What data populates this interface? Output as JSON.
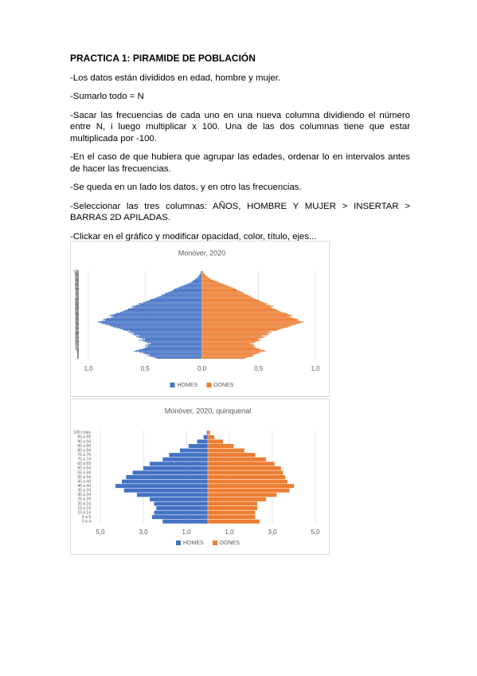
{
  "document": {
    "title": "PRACTICA 1: PIRAMIDE DE POBLACIÓN",
    "paragraphs": [
      "-Los datos están divididos en edad, hombre y mujer.",
      "-Sumarlo todo = N",
      "-Sacar las frecuencias de cada uno en una nueva columna dividiendo el número entre N, i luego multiplicar x 100. Una de las dos columnas tiene que estar multiplicada por -100.",
      "-En el caso de que hubiera que agrupar las edades, ordenar lo en intervalos antes de hacer las frecuencias.",
      "-Se queda en un lado los datos, y en otro las frecuencias.",
      "-Seleccionar las tres columnas: AÑOS, HOMBRE Y MUJER > INSERTAR > BARRAS 2D APILADAS.",
      "-Clickar en el gráfico y modificar opacidad, color, título, ejes..."
    ]
  },
  "chart_data": [
    {
      "type": "bar",
      "orientation": "horizontal",
      "title": "Monòver, 2020",
      "categories": [
        "0",
        "1",
        "2",
        "3",
        "4",
        "5",
        "6",
        "7",
        "8",
        "9",
        "10",
        "11",
        "12",
        "13",
        "14",
        "15",
        "16",
        "17",
        "18",
        "19",
        "20",
        "21",
        "22",
        "23",
        "24",
        "25",
        "26",
        "27",
        "28",
        "29",
        "30",
        "31",
        "32",
        "33",
        "34",
        "35",
        "36",
        "37",
        "38",
        "39",
        "40",
        "41",
        "42",
        "43",
        "44",
        "45",
        "46",
        "47",
        "48",
        "49",
        "50",
        "51",
        "52",
        "53",
        "54",
        "55",
        "56",
        "57",
        "58",
        "59",
        "60",
        "61",
        "62",
        "63",
        "64",
        "65",
        "66",
        "67",
        "68",
        "69",
        "70",
        "71",
        "72",
        "73",
        "74",
        "75",
        "76",
        "77",
        "78",
        "79",
        "80",
        "81",
        "82",
        "83",
        "84",
        "85",
        "86",
        "87",
        "88",
        "89",
        "90",
        "91",
        "92",
        "93",
        "94",
        "95",
        "96",
        "97",
        "98",
        "99",
        "100"
      ],
      "series": [
        {
          "name": "HOMES",
          "color": "#4472c4",
          "values": [
            -0.4,
            -0.42,
            -0.45,
            -0.48,
            -0.46,
            -0.5,
            -0.52,
            -0.55,
            -0.6,
            -0.58,
            -0.55,
            -0.52,
            -0.5,
            -0.48,
            -0.5,
            -0.47,
            -0.49,
            -0.45,
            -0.48,
            -0.5,
            -0.52,
            -0.55,
            -0.5,
            -0.53,
            -0.56,
            -0.58,
            -0.55,
            -0.6,
            -0.62,
            -0.6,
            -0.65,
            -0.63,
            -0.68,
            -0.7,
            -0.72,
            -0.75,
            -0.78,
            -0.8,
            -0.82,
            -0.85,
            -0.88,
            -0.9,
            -0.92,
            -0.88,
            -0.85,
            -0.87,
            -0.84,
            -0.8,
            -0.78,
            -0.82,
            -0.8,
            -0.77,
            -0.75,
            -0.72,
            -0.7,
            -0.68,
            -0.66,
            -0.65,
            -0.62,
            -0.6,
            -0.62,
            -0.58,
            -0.55,
            -0.56,
            -0.52,
            -0.5,
            -0.48,
            -0.46,
            -0.45,
            -0.42,
            -0.4,
            -0.38,
            -0.36,
            -0.35,
            -0.33,
            -0.32,
            -0.3,
            -0.28,
            -0.26,
            -0.25,
            -0.24,
            -0.22,
            -0.2,
            -0.18,
            -0.16,
            -0.14,
            -0.12,
            -0.1,
            -0.09,
            -0.08,
            -0.07,
            -0.06,
            -0.05,
            -0.04,
            -0.03,
            -0.03,
            -0.02,
            -0.02,
            -0.01,
            -0.01,
            -0.01
          ]
        },
        {
          "name": "DONES",
          "color": "#ed7d31",
          "values": [
            0.38,
            0.4,
            0.44,
            0.46,
            0.45,
            0.48,
            0.5,
            0.52,
            0.56,
            0.55,
            0.52,
            0.5,
            0.48,
            0.46,
            0.47,
            0.45,
            0.46,
            0.43,
            0.46,
            0.48,
            0.5,
            0.52,
            0.49,
            0.51,
            0.54,
            0.56,
            0.53,
            0.58,
            0.6,
            0.58,
            0.62,
            0.6,
            0.66,
            0.68,
            0.7,
            0.73,
            0.76,
            0.78,
            0.8,
            0.83,
            0.86,
            0.88,
            0.9,
            0.86,
            0.84,
            0.85,
            0.82,
            0.79,
            0.77,
            0.8,
            0.78,
            0.76,
            0.74,
            0.71,
            0.69,
            0.67,
            0.66,
            0.64,
            0.62,
            0.61,
            0.63,
            0.6,
            0.57,
            0.58,
            0.55,
            0.53,
            0.51,
            0.5,
            0.48,
            0.46,
            0.45,
            0.43,
            0.42,
            0.4,
            0.38,
            0.37,
            0.36,
            0.34,
            0.32,
            0.31,
            0.3,
            0.28,
            0.26,
            0.24,
            0.22,
            0.2,
            0.18,
            0.16,
            0.14,
            0.12,
            0.1,
            0.08,
            0.07,
            0.06,
            0.05,
            0.04,
            0.03,
            0.02,
            0.02,
            0.01,
            0.01
          ]
        }
      ],
      "xlim": [
        -1,
        1
      ],
      "xticks": [
        {
          "value": -1,
          "label": "1,0"
        },
        {
          "value": -0.5,
          "label": "0,5"
        },
        {
          "value": 0,
          "label": "0,0"
        },
        {
          "value": 0.5,
          "label": "0,5"
        },
        {
          "value": 1,
          "label": "1,0"
        }
      ],
      "grid": true,
      "legend": "bottom"
    },
    {
      "type": "bar",
      "orientation": "horizontal",
      "title": "Monòver, 2020, quinquenal",
      "categories": [
        "0 a 4",
        "5 a 9",
        "10 a 14",
        "15 a 19",
        "20 a 24",
        "25 a 29",
        "30 a 34",
        "35 a 39",
        "40 a 44",
        "45 a 49",
        "50 a 54",
        "55 a 59",
        "60 a 64",
        "65 a 69",
        "70 a 74",
        "75 a 79",
        "80 a 84",
        "85 a 89",
        "90 a 94",
        "95 a 99",
        "100 i més"
      ],
      "series": [
        {
          "name": "HOMES",
          "color": "#4472c4",
          "values": [
            -2.1,
            -2.6,
            -2.5,
            -2.4,
            -2.5,
            -2.7,
            -3.3,
            -3.9,
            -4.3,
            -4.0,
            -3.8,
            -3.5,
            -3.0,
            -2.7,
            -2.1,
            -1.8,
            -1.3,
            -0.9,
            -0.5,
            -0.2,
            -0.05
          ]
        },
        {
          "name": "DONES",
          "color": "#ed7d31",
          "values": [
            2.4,
            2.2,
            2.2,
            2.3,
            2.3,
            2.7,
            3.2,
            3.8,
            4.0,
            3.7,
            3.6,
            3.5,
            3.4,
            3.1,
            2.7,
            2.2,
            1.7,
            1.2,
            0.7,
            0.3,
            0.1
          ]
        }
      ],
      "xlim": [
        -5,
        5
      ],
      "xticks": [
        {
          "value": -5,
          "label": "5,0"
        },
        {
          "value": -3,
          "label": "3,0"
        },
        {
          "value": -1,
          "label": "1,0"
        },
        {
          "value": 1,
          "label": "1,0"
        },
        {
          "value": 3,
          "label": "3,0"
        },
        {
          "value": 5,
          "label": "5,0"
        }
      ],
      "grid": true,
      "legend": "bottom"
    }
  ]
}
